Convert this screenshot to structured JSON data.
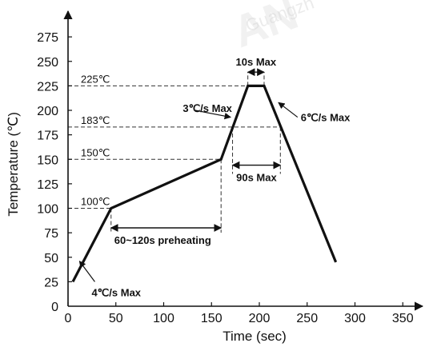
{
  "chart_data": {
    "type": "line",
    "xlabel": "Time (sec)",
    "ylabel": "Temperature (℃)",
    "xlim": [
      0,
      360
    ],
    "ylim": [
      0,
      290
    ],
    "xticks": [
      0,
      50,
      100,
      150,
      200,
      250,
      300,
      350
    ],
    "yticks": [
      0,
      25,
      50,
      75,
      100,
      125,
      150,
      175,
      200,
      225,
      250,
      275
    ],
    "x_tick_labels": [
      "0",
      "50",
      "100",
      "150",
      "200",
      "250",
      "300",
      "350"
    ],
    "y_tick_labels": [
      "0",
      "25",
      "50",
      "75",
      "100",
      "125",
      "150",
      "175",
      "200",
      "225",
      "250",
      "275"
    ],
    "series": [
      {
        "x": [
          5,
          45,
          160,
          188,
          205,
          280
        ],
        "y": [
          25,
          100,
          150,
          225,
          225,
          45
        ]
      }
    ],
    "reference_lines": [
      {
        "label": "225℃",
        "y": 225
      },
      {
        "label": "183℃",
        "y": 183
      },
      {
        "label": "150℃",
        "y": 150
      },
      {
        "label": "100℃",
        "y": 100
      }
    ],
    "annotations": [
      {
        "text": "10s Max",
        "kind": "span",
        "x0": 188,
        "x1": 205,
        "y": 239
      },
      {
        "text": "90s Max",
        "kind": "span",
        "x0": 172,
        "x1": 222,
        "y": 144
      },
      {
        "text": "60~120s preheating",
        "kind": "span",
        "x0": 45,
        "x1": 160,
        "y": 80
      },
      {
        "text": "3℃/s Max",
        "kind": "arrow",
        "tx": 133,
        "ty": 200,
        "ax": 170,
        "ay": 193
      },
      {
        "text": "6℃/s Max",
        "kind": "arrow",
        "tx": 240,
        "ty": 193,
        "ax": 220,
        "ay": 208
      },
      {
        "text": "4℃/s Max",
        "kind": "arrow",
        "tx": 28,
        "ty": 25,
        "ax": 12,
        "ay": 46
      }
    ],
    "watermark": [
      "AN",
      "Guangzh"
    ]
  }
}
